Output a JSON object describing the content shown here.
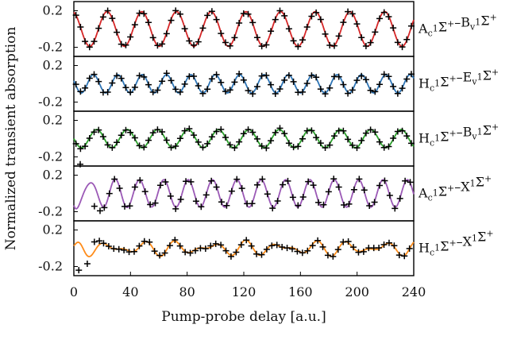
{
  "chart_data": {
    "type": "line",
    "layout": "5 vertically stacked panels sharing the x axis",
    "xlabel": "Pump-probe delay [a.u.]",
    "ylabel": "Normalized transient absorption",
    "xlim": [
      0,
      240
    ],
    "xticks": [
      0,
      40,
      80,
      120,
      160,
      200,
      240
    ],
    "xtick_labels": [
      "0",
      "40",
      "80",
      "120",
      "160",
      "200",
      "240"
    ],
    "grid": false,
    "legend": "none",
    "markers": "black plus signs = sampled data, colored line = fit",
    "panels": [
      {
        "label": {
          "parts": [
            [
              "A",
              ""
            ],
            [
              "c",
              "sub"
            ],
            [
              "1",
              "sup"
            ],
            [
              "Σ",
              ""
            ],
            [
              "+",
              "sup"
            ],
            [
              "–B",
              ""
            ],
            [
              "v",
              "sub"
            ],
            [
              "1",
              "sup"
            ],
            [
              "Σ",
              ""
            ],
            [
              "+",
              "sup"
            ]
          ]
        },
        "color": "#d62728",
        "ylim": [
          -0.3,
          0.3
        ],
        "yticks": [
          0.2,
          -0.2
        ],
        "ytick_labels": [
          "0.2",
          "-0.2"
        ],
        "fit": {
          "period": 24.5,
          "amplitude": 0.19,
          "phase_deg": -255,
          "secondary": {
            "amplitude": 0.0,
            "period": 1
          },
          "transient": {
            "amplitude": 0.0,
            "decay": 1
          }
        },
        "markers_step": 3.2,
        "markers_start": 1.5,
        "noise": 0.015
      },
      {
        "label": {
          "parts": [
            [
              "H",
              ""
            ],
            [
              "c",
              "sub"
            ],
            [
              "1",
              "sup"
            ],
            [
              "Σ",
              ""
            ],
            [
              "+",
              "sup"
            ],
            [
              "–E",
              ""
            ],
            [
              "v",
              "sub"
            ],
            [
              "1",
              "sup"
            ],
            [
              "Σ",
              ""
            ],
            [
              "+",
              "sup"
            ]
          ]
        },
        "color": "#2e75b6",
        "ylim": [
          -0.3,
          0.3
        ],
        "yticks": [
          0.2,
          -0.2
        ],
        "ytick_labels": [
          "0.2",
          "-0.2"
        ],
        "fit": {
          "period": 17.2,
          "amplitude": 0.1,
          "phase_deg": 160,
          "secondary": {
            "amplitude": 0.0,
            "period": 1
          },
          "transient": {
            "amplitude": 0.0,
            "decay": 1
          }
        },
        "markers_step": 3.2,
        "markers_start": 1.5,
        "noise": 0.015
      },
      {
        "label": {
          "parts": [
            [
              "H",
              ""
            ],
            [
              "c",
              "sub"
            ],
            [
              "1",
              "sup"
            ],
            [
              "Σ",
              ""
            ],
            [
              "+",
              "sup"
            ],
            [
              "–B",
              ""
            ],
            [
              "v",
              "sub"
            ],
            [
              "1",
              "sup"
            ],
            [
              "Σ",
              ""
            ],
            [
              "+",
              "sup"
            ]
          ]
        },
        "color": "#2ca02c",
        "ylim": [
          -0.3,
          0.3
        ],
        "yticks": [
          0.2,
          -0.2
        ],
        "ytick_labels": [
          "0.2",
          "-0.2"
        ],
        "fit": {
          "period": 21.5,
          "amplitude": 0.1,
          "phase_deg": 180,
          "secondary": {
            "amplitude": 0.0,
            "period": 1
          },
          "transient": {
            "amplitude": 0.0,
            "decay": 1
          }
        },
        "markers_step": 3.2,
        "markers_start": 1.5,
        "noise": 0.015
      },
      {
        "label": {
          "parts": [
            [
              "A",
              ""
            ],
            [
              "c",
              "sub"
            ],
            [
              "1",
              "sup"
            ],
            [
              "Σ",
              ""
            ],
            [
              "+",
              "sup"
            ],
            [
              "–X",
              ""
            ],
            [
              "1",
              "sup"
            ],
            [
              "Σ",
              ""
            ],
            [
              "+",
              "sup"
            ]
          ]
        },
        "color": "#9b59b6",
        "ylim": [
          -0.3,
          0.3
        ],
        "yticks": [
          0.2,
          -0.2
        ],
        "ytick_labels": [
          "0.2",
          "-0.2"
        ],
        "fit": {
          "period": 17.2,
          "amplitude": 0.15,
          "phase_deg": 200,
          "secondary": {
            "amplitude": 0.0,
            "period": 1
          },
          "transient": {
            "amplitude": 0.08,
            "decay": 14
          }
        },
        "markers_step": 3.6,
        "markers_start": 3.5,
        "noise": 0.02,
        "outliers": [
          {
            "x": 4.5,
            "y": 0.32
          },
          {
            "x": 14.5,
            "y": -0.14
          },
          {
            "x": 18.5,
            "y": -0.19
          }
        ]
      },
      {
        "label": {
          "parts": [
            [
              "H",
              ""
            ],
            [
              "c",
              "sub"
            ],
            [
              "1",
              "sup"
            ],
            [
              "Σ",
              ""
            ],
            [
              "+",
              "sup"
            ],
            [
              "–X",
              ""
            ],
            [
              "1",
              "sup"
            ],
            [
              "Σ",
              ""
            ],
            [
              "+",
              "sup"
            ]
          ]
        },
        "color": "#ff8c1a",
        "ylim": [
          -0.3,
          0.3
        ],
        "yticks": [
          0.2,
          -0.2
        ],
        "ytick_labels": [
          "0.2",
          "-0.2"
        ],
        "fit": {
          "period": 24.3,
          "amplitude": 0.05,
          "phase_deg": 90,
          "secondary": {
            "amplitude": 0.04,
            "period": 17.2
          },
          "transient": {
            "amplitude": 0.06,
            "decay": 6
          }
        },
        "markers_step": 3.6,
        "markers_start": 3.0,
        "noise": 0.015,
        "outliers": [
          {
            "x": 3.5,
            "y": -0.24
          },
          {
            "x": 9.5,
            "y": -0.17
          },
          {
            "x": 14.5,
            "y": 0.07
          },
          {
            "x": 18.0,
            "y": 0.08
          }
        ]
      }
    ]
  }
}
